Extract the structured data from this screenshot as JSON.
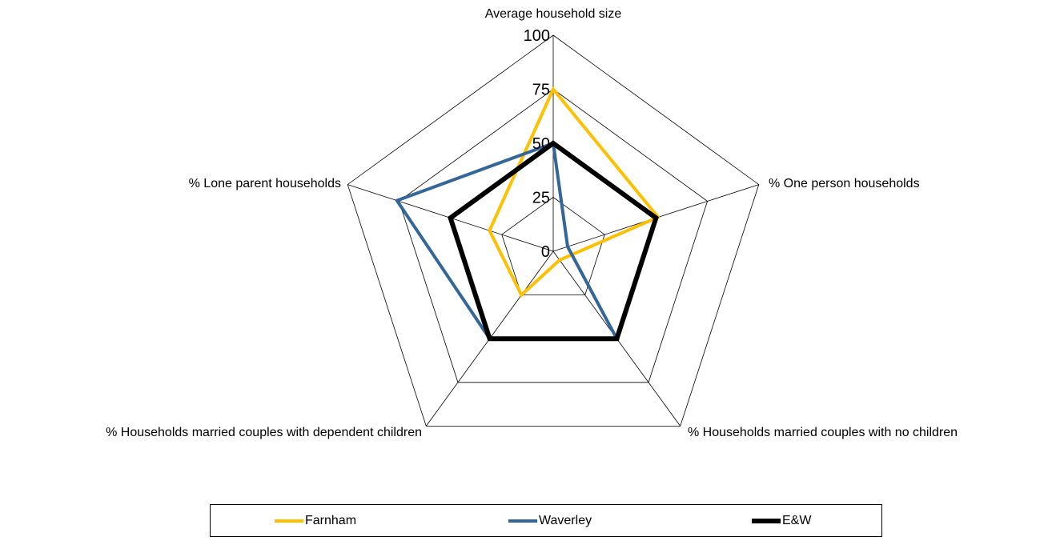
{
  "chart_data": {
    "type": "radar",
    "axes": [
      "Average household size",
      "% One person households",
      "% Households married couples with no children",
      "% Households married couples with dependent children",
      "% Lone parent households"
    ],
    "rlim": [
      0,
      100
    ],
    "ticks": [
      "0",
      "25",
      "50",
      "75",
      "100"
    ],
    "grid": true,
    "legend_position": "bottom",
    "series": [
      {
        "name": "Farnham",
        "values": [
          75,
          51,
          5,
          25,
          31
        ],
        "color": "#FFC000",
        "weight": "thin"
      },
      {
        "name": "Waverley",
        "values": [
          50,
          7,
          50,
          50,
          76
        ],
        "color": "#336699",
        "weight": "thin"
      },
      {
        "name": "E&W",
        "values": [
          50,
          50,
          50,
          50,
          50
        ],
        "color": "#000000",
        "weight": "thick"
      }
    ]
  }
}
